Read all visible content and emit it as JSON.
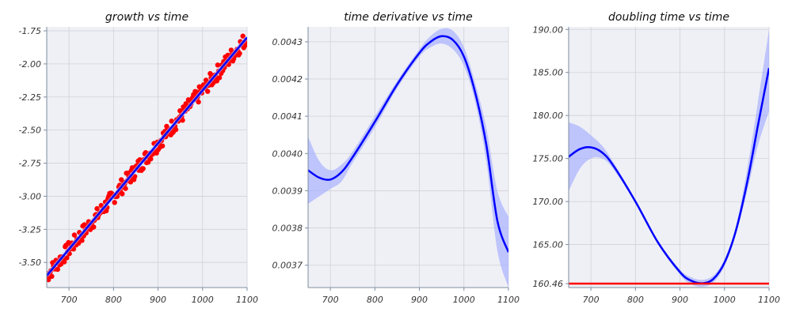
{
  "chart_data": [
    {
      "type": "scatter",
      "title": "growth vs time",
      "xlim": [
        650,
        1100
      ],
      "ylim": [
        -3.69,
        -1.72
      ],
      "xticks": [
        700,
        800,
        900,
        1000,
        1100
      ],
      "yticks": [
        -1.75,
        -2.0,
        -2.25,
        -2.5,
        -2.75,
        -3.0,
        -3.25,
        -3.5
      ],
      "ytick_labels": [
        "-1.75",
        "-2.00",
        "-2.25",
        "-2.50",
        "-2.75",
        "-3.00",
        "-3.25",
        "-3.50"
      ],
      "grid": true,
      "colors": {
        "points": "#ff0000",
        "fit": "#0000ff",
        "band": "#aab0ff"
      },
      "fit_line": {
        "x": [
          650,
          1100
        ],
        "y": [
          -3.6,
          -1.8
        ]
      },
      "points": {
        "x_range": [
          650,
          1100
        ],
        "count": 240,
        "trend_y_at_x_range": [
          -3.6,
          -1.8
        ],
        "vertical_spread": 0.06
      }
    },
    {
      "type": "line",
      "title": "time derivative vs time",
      "xlim": [
        650,
        1100
      ],
      "ylim": [
        0.00364,
        0.00434
      ],
      "xticks": [
        700,
        800,
        900,
        1000,
        1100
      ],
      "yticks": [
        0.0043,
        0.0042,
        0.0041,
        0.004,
        0.0039,
        0.0038,
        0.0037
      ],
      "ytick_labels": [
        "0.0043",
        "0.0042",
        "0.0041",
        "0.0040",
        "0.0039",
        "0.0038",
        "0.0037"
      ],
      "grid": true,
      "colors": {
        "line": "#0000ff",
        "band": "#aab0ff"
      },
      "series": [
        {
          "x": [
            650,
            675,
            700,
            725,
            750,
            800,
            850,
            900,
            925,
            950,
            975,
            1000,
            1025,
            1050,
            1075,
            1100
          ],
          "y": [
            0.003955,
            0.003935,
            0.00393,
            0.00395,
            0.00399,
            0.004085,
            0.004185,
            0.00427,
            0.0043,
            0.004315,
            0.004305,
            0.00426,
            0.004165,
            0.004025,
            0.00382,
            0.003735
          ],
          "lower": [
            0.003865,
            0.003885,
            0.003905,
            0.003925,
            0.003975,
            0.00407,
            0.004175,
            0.00426,
            0.004285,
            0.004295,
            0.00428,
            0.004235,
            0.00414,
            0.00398,
            0.00374,
            0.00364
          ],
          "upper": [
            0.004045,
            0.00398,
            0.003955,
            0.00397,
            0.004005,
            0.0041,
            0.004195,
            0.00428,
            0.004315,
            0.004335,
            0.00433,
            0.004285,
            0.00419,
            0.00407,
            0.0039,
            0.00383
          ]
        }
      ]
    },
    {
      "type": "line",
      "title": "doubling time vs time",
      "xlim": [
        650,
        1100
      ],
      "ylim": [
        160.0,
        190.3
      ],
      "xticks": [
        700,
        800,
        900,
        1000,
        1100
      ],
      "yticks": [
        190.0,
        185.0,
        180.0,
        175.0,
        170.0,
        165.0,
        160.46
      ],
      "ytick_labels": [
        "190.00",
        "185.00",
        "180.00",
        "175.00",
        "170.00",
        "165.00",
        "160.46"
      ],
      "grid": true,
      "colors": {
        "line": "#0000ff",
        "band": "#aab0ff",
        "hline": "#ff0000"
      },
      "hline": 160.46,
      "series": [
        {
          "x": [
            650,
            675,
            700,
            725,
            750,
            800,
            850,
            900,
            925,
            950,
            975,
            1000,
            1025,
            1050,
            1075,
            1100
          ],
          "y": [
            175.2,
            176.1,
            176.3,
            175.7,
            174.2,
            170.0,
            165.3,
            161.8,
            160.8,
            160.5,
            161.0,
            162.9,
            166.5,
            172.0,
            178.8,
            185.5
          ],
          "lower": [
            171.2,
            173.8,
            175.0,
            175.0,
            173.8,
            169.8,
            165.1,
            161.5,
            160.4,
            160.1,
            160.6,
            162.5,
            166.0,
            171.0,
            176.5,
            180.5
          ],
          "upper": [
            179.2,
            178.7,
            177.7,
            176.5,
            174.6,
            170.2,
            165.5,
            162.1,
            161.2,
            160.9,
            161.4,
            163.3,
            167.0,
            173.5,
            181.5,
            190.0
          ]
        }
      ]
    }
  ]
}
